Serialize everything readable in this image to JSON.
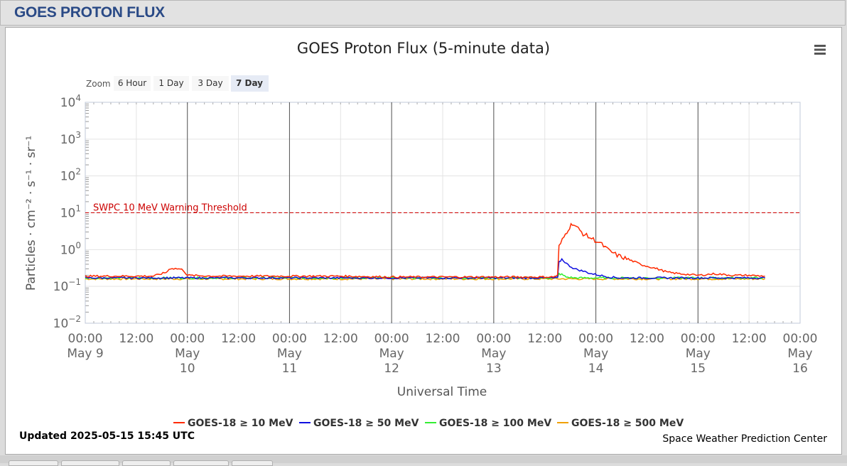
{
  "header": {
    "title": "GOES PROTON FLUX"
  },
  "menu_icon": "hamburger-menu-icon",
  "zoom": {
    "label": "Zoom",
    "buttons": [
      "6 Hour",
      "1 Day",
      "3 Day",
      "7 Day"
    ],
    "active": "7 Day"
  },
  "footer": {
    "updated": "Updated 2025-05-15 15:45 UTC",
    "credit": "Space Weather Prediction Center"
  },
  "colors": {
    "ge10": "#ff2a00",
    "ge50": "#1010e0",
    "ge100": "#33ee33",
    "ge500": "#f0a000",
    "threshold": "#cc0000",
    "header_text": "#2a4a86"
  },
  "chart_data": {
    "type": "line",
    "title": "GOES Proton Flux (5-minute data)",
    "xlabel": "Universal Time",
    "ylabel": "Particles · cm⁻² · s⁻¹ · sr⁻¹",
    "y_scale": "log",
    "ylim": [
      0.01,
      10000
    ],
    "y_ticks": [
      {
        "value": 0.01,
        "base": "10",
        "exp": "−2"
      },
      {
        "value": 0.1,
        "base": "10",
        "exp": "−1"
      },
      {
        "value": 1,
        "base": "10",
        "exp": "0"
      },
      {
        "value": 10,
        "base": "10",
        "exp": "1"
      },
      {
        "value": 100,
        "base": "10",
        "exp": "2"
      },
      {
        "value": 1000,
        "base": "10",
        "exp": "3"
      },
      {
        "value": 10000,
        "base": "10",
        "exp": "4"
      }
    ],
    "xlim": [
      "2025-05-09 00:00",
      "2025-05-16 00:00"
    ],
    "x_ticks": [
      {
        "time": "2025-05-09 00:00",
        "lines": [
          "00:00",
          "May 9"
        ]
      },
      {
        "time": "2025-05-09 12:00",
        "lines": [
          "12:00"
        ]
      },
      {
        "time": "2025-05-10 00:00",
        "lines": [
          "00:00",
          "May",
          "10"
        ]
      },
      {
        "time": "2025-05-10 12:00",
        "lines": [
          "12:00"
        ]
      },
      {
        "time": "2025-05-11 00:00",
        "lines": [
          "00:00",
          "May",
          "11"
        ]
      },
      {
        "time": "2025-05-11 12:00",
        "lines": [
          "12:00"
        ]
      },
      {
        "time": "2025-05-12 00:00",
        "lines": [
          "00:00",
          "May",
          "12"
        ]
      },
      {
        "time": "2025-05-12 12:00",
        "lines": [
          "12:00"
        ]
      },
      {
        "time": "2025-05-13 00:00",
        "lines": [
          "00:00",
          "May",
          "13"
        ]
      },
      {
        "time": "2025-05-13 12:00",
        "lines": [
          "12:00"
        ]
      },
      {
        "time": "2025-05-14 00:00",
        "lines": [
          "00:00",
          "May",
          "14"
        ]
      },
      {
        "time": "2025-05-14 12:00",
        "lines": [
          "12:00"
        ]
      },
      {
        "time": "2025-05-15 00:00",
        "lines": [
          "00:00",
          "May",
          "15"
        ]
      },
      {
        "time": "2025-05-15 12:00",
        "lines": [
          "12:00"
        ]
      },
      {
        "time": "2025-05-16 00:00",
        "lines": [
          "00:00",
          "May",
          "16"
        ]
      }
    ],
    "day_lines": [
      "2025-05-10 00:00",
      "2025-05-11 00:00",
      "2025-05-12 00:00",
      "2025-05-13 00:00",
      "2025-05-14 00:00",
      "2025-05-15 00:00"
    ],
    "threshold": {
      "value": 10,
      "label": "SWPC 10 MeV Warning Threshold"
    },
    "grid": true,
    "legend_position": "bottom-center",
    "series": [
      {
        "name": "GOES-18 ≥ 10 MeV",
        "color": "#ff2a00",
        "points": [
          [
            "2025-05-09 00:00",
            0.19
          ],
          [
            "2025-05-09 06:00",
            0.19
          ],
          [
            "2025-05-09 12:00",
            0.19
          ],
          [
            "2025-05-09 16:00",
            0.19
          ],
          [
            "2025-05-09 19:00",
            0.24
          ],
          [
            "2025-05-09 20:00",
            0.31
          ],
          [
            "2025-05-09 22:00",
            0.3
          ],
          [
            "2025-05-09 23:00",
            0.28
          ],
          [
            "2025-05-10 00:00",
            0.2
          ],
          [
            "2025-05-10 06:00",
            0.19
          ],
          [
            "2025-05-10 12:00",
            0.19
          ],
          [
            "2025-05-11 00:00",
            0.19
          ],
          [
            "2025-05-11 12:00",
            0.19
          ],
          [
            "2025-05-12 00:00",
            0.18
          ],
          [
            "2025-05-12 12:00",
            0.18
          ],
          [
            "2025-05-13 00:00",
            0.18
          ],
          [
            "2025-05-13 12:00",
            0.18
          ],
          [
            "2025-05-13 14:00",
            0.18
          ],
          [
            "2025-05-13 15:00",
            0.2
          ],
          [
            "2025-05-13 15:20",
            1.2
          ],
          [
            "2025-05-13 16:30",
            2.2
          ],
          [
            "2025-05-13 17:30",
            3.6
          ],
          [
            "2025-05-13 18:30",
            5.2
          ],
          [
            "2025-05-13 19:30",
            4.0
          ],
          [
            "2025-05-13 21:00",
            2.7
          ],
          [
            "2025-05-13 23:00",
            2.0
          ],
          [
            "2025-05-14 01:00",
            1.5
          ],
          [
            "2025-05-14 03:00",
            0.95
          ],
          [
            "2025-05-14 05:00",
            0.7
          ],
          [
            "2025-05-14 08:00",
            0.52
          ],
          [
            "2025-05-14 11:00",
            0.38
          ],
          [
            "2025-05-14 14:00",
            0.31
          ],
          [
            "2025-05-14 17:00",
            0.24
          ],
          [
            "2025-05-14 20:00",
            0.22
          ],
          [
            "2025-05-15 00:00",
            0.2
          ],
          [
            "2025-05-15 04:00",
            0.22
          ],
          [
            "2025-05-15 08:00",
            0.2
          ],
          [
            "2025-05-15 12:00",
            0.2
          ],
          [
            "2025-05-15 15:45",
            0.19
          ]
        ]
      },
      {
        "name": "GOES-18 ≥ 50 MeV",
        "color": "#1010e0",
        "points": [
          [
            "2025-05-09 00:00",
            0.17
          ],
          [
            "2025-05-10 00:00",
            0.17
          ],
          [
            "2025-05-11 00:00",
            0.17
          ],
          [
            "2025-05-12 00:00",
            0.17
          ],
          [
            "2025-05-13 00:00",
            0.17
          ],
          [
            "2025-05-13 15:00",
            0.17
          ],
          [
            "2025-05-13 15:20",
            0.45
          ],
          [
            "2025-05-13 16:00",
            0.55
          ],
          [
            "2025-05-13 17:30",
            0.38
          ],
          [
            "2025-05-13 19:00",
            0.3
          ],
          [
            "2025-05-13 21:00",
            0.26
          ],
          [
            "2025-05-13 23:00",
            0.22
          ],
          [
            "2025-05-14 01:00",
            0.2
          ],
          [
            "2025-05-14 03:00",
            0.18
          ],
          [
            "2025-05-14 06:00",
            0.17
          ],
          [
            "2025-05-15 00:00",
            0.17
          ],
          [
            "2025-05-15 15:45",
            0.17
          ]
        ]
      },
      {
        "name": "GOES-18 ≥ 100 MeV",
        "color": "#33ee33",
        "points": [
          [
            "2025-05-09 00:00",
            0.17
          ],
          [
            "2025-05-10 00:00",
            0.17
          ],
          [
            "2025-05-11 00:00",
            0.17
          ],
          [
            "2025-05-12 00:00",
            0.17
          ],
          [
            "2025-05-13 00:00",
            0.17
          ],
          [
            "2025-05-13 15:00",
            0.17
          ],
          [
            "2025-05-13 15:20",
            0.22
          ],
          [
            "2025-05-13 16:00",
            0.21
          ],
          [
            "2025-05-13 17:00",
            0.18
          ],
          [
            "2025-05-13 19:00",
            0.17
          ],
          [
            "2025-05-15 00:00",
            0.17
          ],
          [
            "2025-05-15 15:45",
            0.17
          ]
        ]
      },
      {
        "name": "GOES-18 ≥ 500 MeV",
        "color": "#f0a000",
        "points": [
          [
            "2025-05-09 00:00",
            0.16
          ],
          [
            "2025-05-10 00:00",
            0.16
          ],
          [
            "2025-05-11 00:00",
            0.16
          ],
          [
            "2025-05-12 00:00",
            0.16
          ],
          [
            "2025-05-13 00:00",
            0.16
          ],
          [
            "2025-05-14 00:00",
            0.16
          ],
          [
            "2025-05-15 00:00",
            0.16
          ],
          [
            "2025-05-15 15:45",
            0.16
          ]
        ]
      }
    ]
  }
}
